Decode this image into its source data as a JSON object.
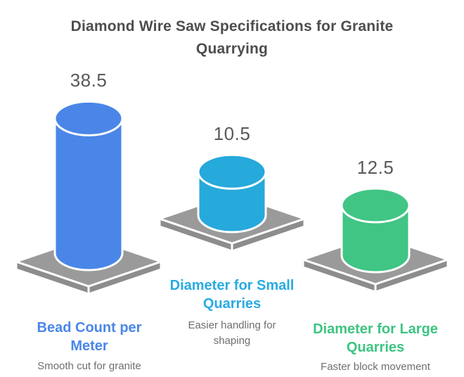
{
  "title": "Diamond Wire Saw Specifications for Granite Quarrying",
  "chart_data": {
    "type": "bar",
    "variant": "3d-cylinders-on-platforms",
    "title": "Diamond Wire Saw Specifications for Granite Quarrying",
    "categories": [
      "Bead Count per Meter",
      "Diameter for Small Quarries",
      "Diameter for Large Quarries"
    ],
    "values": [
      38.5,
      10.5,
      12.5
    ],
    "value_labels": [
      "38.5",
      "10.5",
      "12.5"
    ],
    "descriptions": [
      "Smooth cut for granite",
      "Easier handling for shaping",
      "Faster block movement"
    ],
    "bar_colors": [
      "#4a86e8",
      "#26a9db",
      "#40c584"
    ],
    "category_label_colors": [
      "#4a86e8",
      "#29abe2",
      "#3dc482"
    ],
    "platform_top_color": "#9a9a9a",
    "platform_side_color": "#8d8d8d",
    "outline_color": "#ffffff",
    "title_color": "#4d4d4d",
    "value_text_color": "#58595b",
    "description_text_color": "#6d6e71",
    "background_color": "#ffffff",
    "legend": "none",
    "axes": "none"
  }
}
